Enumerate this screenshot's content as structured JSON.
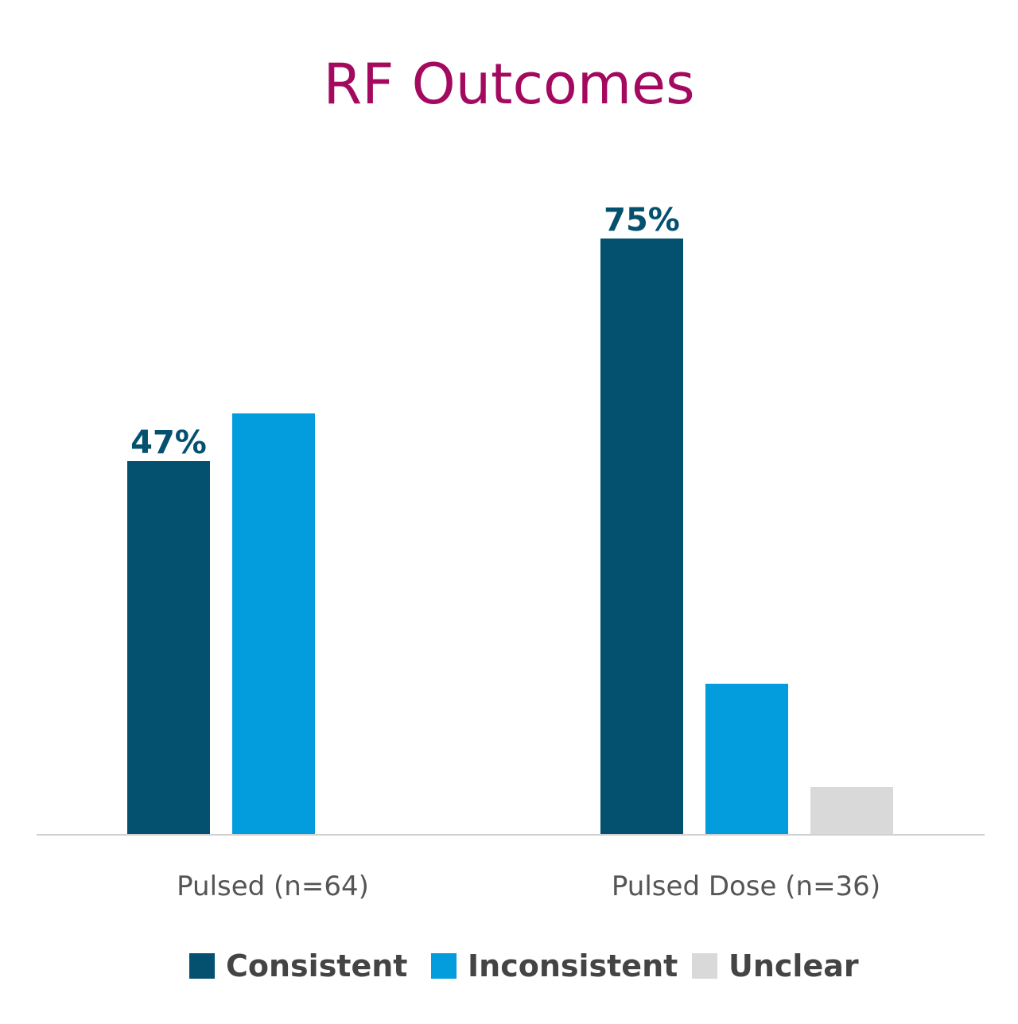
{
  "chart_data": {
    "type": "bar",
    "title": "RF Outcomes",
    "categories": [
      "Pulsed (n=64)",
      "Pulsed Dose (n=36)"
    ],
    "series": [
      {
        "name": "Consistent",
        "color": "#04506f",
        "values": [
          47,
          75
        ],
        "labels": [
          "47%",
          "75%"
        ]
      },
      {
        "name": "Inconsistent",
        "color": "#039cdc",
        "values": [
          53,
          19
        ],
        "labels": [
          "",
          ""
        ]
      },
      {
        "name": "Unclear",
        "color": "#d9d9d9",
        "values": [
          null,
          6
        ],
        "labels": [
          "",
          ""
        ]
      }
    ],
    "ylim": [
      0,
      100
    ],
    "grid": false,
    "legend_position": "bottom",
    "axis_color": "#d0d0d0"
  }
}
